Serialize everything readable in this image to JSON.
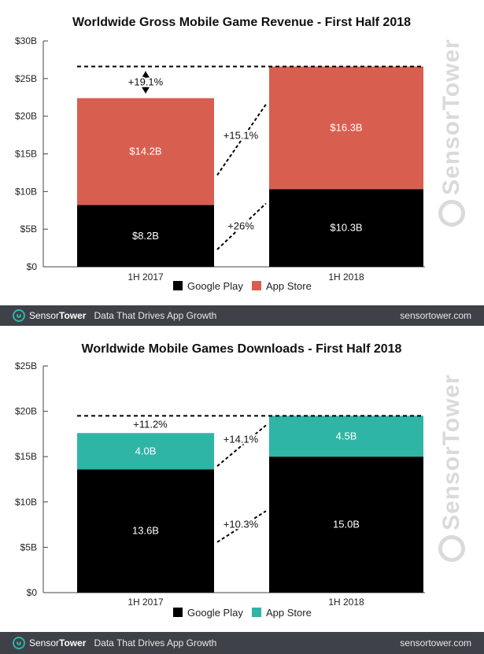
{
  "chart_data": [
    {
      "type": "bar",
      "stacked": true,
      "title": "Worldwide Gross Mobile Game Revenue - First Half 2018",
      "categories": [
        "1H 2017",
        "1H 2018"
      ],
      "series": [
        {
          "name": "Google Play",
          "values": [
            8.2,
            10.3
          ],
          "labels": [
            "$8.2B",
            "$10.3B"
          ],
          "color": "#000000"
        },
        {
          "name": "App Store",
          "values": [
            14.2,
            16.3
          ],
          "labels": [
            "$14.2B",
            "$16.3B"
          ],
          "color": "#d85f4f"
        }
      ],
      "ylim": [
        0,
        30
      ],
      "yticks": [
        0,
        5,
        10,
        15,
        20,
        25,
        30
      ],
      "ytick_labels": [
        "$0",
        "$5B",
        "$10B",
        "$15B",
        "$20B",
        "$25B",
        "$30B"
      ],
      "annotations": {
        "total": "+19.1%",
        "top_segment": "+15.1%",
        "bottom_segment": "+26%"
      },
      "legend": "bottom-center",
      "grid": false
    },
    {
      "type": "bar",
      "stacked": true,
      "title": "Worldwide Mobile Games Downloads - First Half 2018",
      "categories": [
        "1H 2017",
        "1H 2018"
      ],
      "series": [
        {
          "name": "Google Play",
          "values": [
            13.6,
            15.0
          ],
          "labels": [
            "13.6B",
            "15.0B"
          ],
          "color": "#000000"
        },
        {
          "name": "App Store",
          "values": [
            4.0,
            4.5
          ],
          "labels": [
            "4.0B",
            "4.5B"
          ],
          "color": "#2fb5a5"
        }
      ],
      "ylim": [
        0,
        25
      ],
      "yticks": [
        0,
        5,
        10,
        15,
        20,
        25
      ],
      "ytick_labels": [
        "$0",
        "$5B",
        "$10B",
        "$15B",
        "$20B",
        "$25B"
      ],
      "annotations": {
        "total": "+11.2%",
        "top_segment": "+14.1%",
        "bottom_segment": "+10.3%"
      },
      "legend": "bottom-center",
      "grid": false
    }
  ],
  "footer": {
    "brand_part1": "Sensor",
    "brand_part2": "Tower",
    "tagline": "Data That Drives App Growth",
    "website": "sensortower.com"
  },
  "watermark": {
    "part1": "Sensor",
    "part2": "Tower"
  },
  "colors": {
    "footer_bg": "#3e4147",
    "brand_teal": "#2fb5a5",
    "watermark": "#d9dadb"
  }
}
